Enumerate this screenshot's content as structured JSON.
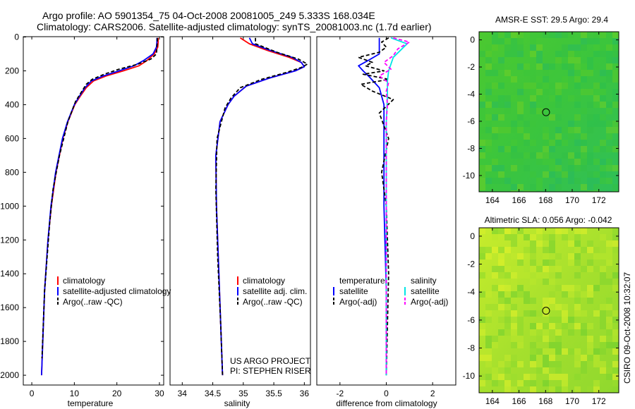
{
  "figure": {
    "title_line1": "Argo profile: AO 5901354_75 04-Oct-2008 20081005_249 5.333S 168.034E",
    "title_line2": "Climatology: CARS2006. Satellite-adjusted climatology: synTS_20081003.nc (1.7d earlier)",
    "credit_line1": "US ARGO PROJECT",
    "credit_line2": "PI: STEPHEN RISER",
    "side_label": "CSIRO 09-Oct-2008 10:32:07"
  },
  "colors": {
    "climatology": "#ff0000",
    "satellite": "#0000ff",
    "argo": "#000000",
    "sal_satellite": "#00e5e5",
    "sal_argo": "#ff00ff",
    "marker": "#000000"
  },
  "chart_data": [
    {
      "type": "line",
      "name": "temperature-profile",
      "xlabel": "temperature",
      "ylabel": "",
      "xlim": [
        -2,
        31
      ],
      "ylim": [
        2050,
        0
      ],
      "xticks": [
        0,
        10,
        20,
        30
      ],
      "yticks": [
        0,
        200,
        400,
        600,
        800,
        1000,
        1200,
        1400,
        1600,
        1800,
        2000
      ],
      "legend": [
        "climatology",
        "satellite-adjusted climatology",
        "Argo(..raw -QC)"
      ],
      "series": [
        {
          "name": "climatology",
          "depth": [
            5,
            30,
            60,
            100,
            140,
            170,
            200,
            230,
            260,
            300,
            350,
            400,
            500,
            600,
            800,
            1000,
            1200,
            1500,
            2000
          ],
          "values": [
            29.7,
            29.7,
            29.6,
            28.8,
            27.0,
            25.2,
            21.5,
            17.5,
            14.5,
            12.8,
            11.4,
            10.1,
            8.5,
            7.3,
            5.7,
            4.6,
            3.8,
            3.0,
            2.3
          ]
        },
        {
          "name": "satellite-adjusted climatology",
          "depth": [
            5,
            30,
            60,
            100,
            140,
            170,
            200,
            230,
            260,
            300,
            350,
            400,
            500,
            600,
            800,
            1000,
            1200,
            1500,
            2000
          ],
          "values": [
            29.4,
            29.4,
            29.3,
            28.5,
            26.2,
            24.0,
            20.5,
            16.8,
            14.0,
            12.5,
            11.2,
            10.0,
            8.4,
            7.2,
            5.6,
            4.5,
            3.8,
            3.0,
            2.3
          ]
        },
        {
          "name": "Argo(..raw -QC)",
          "depth": [
            5,
            30,
            60,
            100,
            130,
            160,
            190,
            220,
            250,
            280,
            320,
            380,
            500,
            700,
            900,
            1100,
            1500,
            1900
          ],
          "values": [
            29.5,
            29.5,
            29.4,
            29.3,
            28.0,
            25.0,
            20.5,
            17.0,
            14.2,
            12.8,
            11.8,
            10.3,
            8.5,
            6.5,
            5.0,
            4.2,
            3.0,
            2.4
          ]
        }
      ]
    },
    {
      "type": "line",
      "name": "salinity-profile",
      "xlabel": "salinity",
      "ylabel": "",
      "xlim": [
        33.8,
        36.1
      ],
      "ylim": [
        2050,
        0
      ],
      "xticks": [
        34,
        34.5,
        35,
        35.5,
        36
      ],
      "xtick_labels": [
        "34",
        "34.5",
        "35",
        "35.5",
        "36"
      ],
      "legend": [
        "climatology",
        "satellite adj. clim.",
        "Argo(..raw -QC)"
      ],
      "series": [
        {
          "name": "climatology",
          "depth": [
            5,
            40,
            80,
            120,
            150,
            175,
            200,
            240,
            290,
            350,
            400,
            500,
            700,
            1000,
            1500,
            2000
          ],
          "values": [
            34.95,
            35.1,
            35.4,
            35.75,
            35.95,
            36.0,
            35.85,
            35.45,
            35.05,
            34.85,
            34.75,
            34.62,
            34.55,
            34.56,
            34.61,
            34.66
          ]
        },
        {
          "name": "satellite adj. clim.",
          "depth": [
            5,
            40,
            80,
            120,
            150,
            175,
            200,
            240,
            290,
            350,
            400,
            500,
            700,
            1000,
            1500,
            2000
          ],
          "values": [
            35.1,
            35.15,
            35.45,
            35.8,
            35.95,
            36.0,
            35.85,
            35.45,
            35.05,
            34.85,
            34.75,
            34.62,
            34.55,
            34.56,
            34.61,
            34.66
          ]
        },
        {
          "name": "Argo(..raw -QC)",
          "depth": [
            5,
            40,
            90,
            130,
            160,
            180,
            210,
            250,
            300,
            360,
            420,
            600,
            900,
            1300,
            1700,
            2000
          ],
          "values": [
            35.2,
            35.2,
            35.55,
            35.9,
            36.05,
            35.95,
            35.7,
            35.3,
            34.95,
            34.8,
            34.7,
            34.57,
            34.55,
            34.58,
            34.63,
            34.66
          ]
        }
      ]
    },
    {
      "type": "line",
      "name": "difference-profile",
      "xlabel": "difference from climatology",
      "ylabel": "",
      "xlim": [
        -3,
        3
      ],
      "ylim": [
        2050,
        0
      ],
      "xticks": [
        -2,
        0,
        2
      ],
      "legend_temperature_heading": "temperature",
      "legend_salinity_heading": "salinity",
      "legend": [
        "satellite",
        "Argo(-adj)",
        "satellite",
        "Argo(-adj)"
      ],
      "series": [
        {
          "name": "temperature satellite",
          "depth": [
            5,
            50,
            100,
            140,
            170,
            200,
            240,
            300,
            400,
            600,
            1000,
            1500,
            2000
          ],
          "values": [
            -0.3,
            -0.3,
            -0.3,
            -0.8,
            -1.2,
            -1.0,
            -0.7,
            -0.3,
            -0.1,
            -0.1,
            -0.1,
            0.0,
            0.0
          ]
        },
        {
          "name": "temperature Argo(-adj)",
          "depth": [
            5,
            30,
            60,
            90,
            120,
            150,
            170,
            200,
            220,
            250,
            280,
            320,
            370,
            450,
            600,
            800,
            1000,
            1400,
            2000
          ],
          "values": [
            0.1,
            -0.2,
            0.0,
            -0.3,
            -1.2,
            -0.6,
            -0.9,
            -0.1,
            -1.0,
            0.1,
            -1.1,
            -0.6,
            0.3,
            -0.3,
            0.1,
            -0.2,
            0.0,
            0.1,
            0.0
          ]
        },
        {
          "name": "salinity satellite",
          "depth": [
            5,
            40,
            80,
            120,
            160,
            200,
            260,
            350,
            500,
            800,
            1200,
            2000
          ],
          "values": [
            0.2,
            0.9,
            0.6,
            0.3,
            0.2,
            0.1,
            0.05,
            0.05,
            0.0,
            0.0,
            0.0,
            0.0
          ]
        },
        {
          "name": "salinity Argo(-adj)",
          "depth": [
            5,
            30,
            70,
            110,
            150,
            190,
            230,
            270,
            320,
            400,
            500,
            800,
            1200,
            2000
          ],
          "values": [
            0.3,
            1.0,
            0.5,
            0.3,
            -0.1,
            0.2,
            -0.3,
            0.1,
            0.0,
            0.05,
            0.0,
            0.0,
            0.0,
            0.0
          ]
        }
      ]
    },
    {
      "type": "heatmap",
      "name": "amsre-sst-map",
      "title": "AMSR-E SST: 29.5 Argo: 29.4",
      "xlim": [
        163,
        173.5
      ],
      "ylim": [
        -11.2,
        0.6
      ],
      "xticks": [
        164,
        166,
        168,
        170,
        172
      ],
      "yticks": [
        0,
        -2,
        -4,
        -6,
        -8,
        -10
      ],
      "marker": [
        168.034,
        -5.333
      ]
    },
    {
      "type": "heatmap",
      "name": "altimetric-sla-map",
      "title": "Altimetric SLA: 0.056 Argo: -0.042",
      "xlim": [
        163,
        173.5
      ],
      "ylim": [
        -11.2,
        0.6
      ],
      "xticks": [
        164,
        166,
        168,
        170,
        172
      ],
      "yticks": [
        0,
        -2,
        -4,
        -6,
        -8,
        -10
      ],
      "marker": [
        168.034,
        -5.333
      ]
    }
  ]
}
